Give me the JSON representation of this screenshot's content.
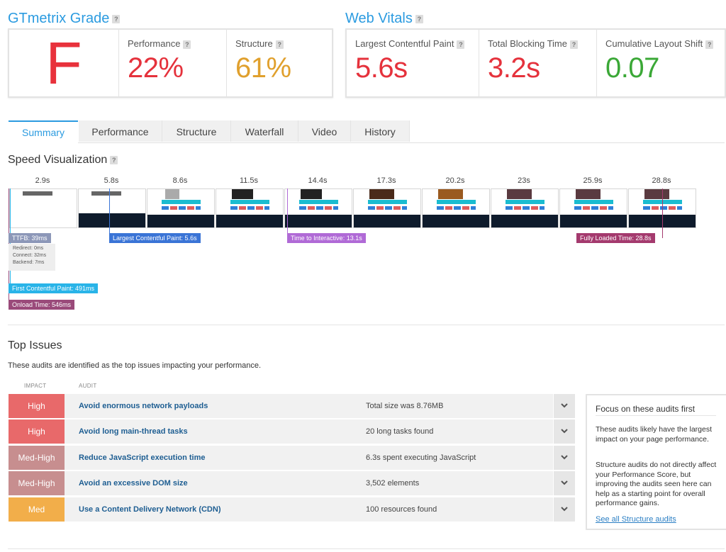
{
  "grade": {
    "title": "GTmetrix Grade",
    "letter": "F",
    "letter_color": "#e8323c",
    "performance": {
      "label": "Performance",
      "value": "22%",
      "color": "#e5323c"
    },
    "structure": {
      "label": "Structure",
      "value": "61%",
      "color": "#e0a02d"
    }
  },
  "vitals": {
    "title": "Web Vitals",
    "lcp": {
      "label": "Largest Contentful Paint",
      "value": "5.6s",
      "color": "#e5323c"
    },
    "tbt": {
      "label": "Total Blocking Time",
      "value": "3.2s",
      "color": "#e5323c"
    },
    "cls": {
      "label": "Cumulative Layout Shift",
      "value": "0.07",
      "color": "#3ba837"
    }
  },
  "help_glyph": "?",
  "tabs": [
    "Summary",
    "Performance",
    "Structure",
    "Waterfall",
    "Video",
    "History"
  ],
  "speed": {
    "title": "Speed Visualization",
    "times": [
      "2.9s",
      "5.8s",
      "8.6s",
      "11.5s",
      "14.4s",
      "17.3s",
      "20.2s",
      "23s",
      "25.9s",
      "28.8s"
    ],
    "markers": {
      "ttfb": "TTFB: 39ms",
      "ttfb_details": [
        "Redirect: 0ms",
        "Connect: 32ms",
        "Backend: 7ms"
      ],
      "lcp": "Largest Contentful Paint: 5.6s",
      "tti": "Time to Interactive: 13.1s",
      "fully_loaded": "Fully Loaded Time: 28.8s",
      "fcp": "First Contentful Paint: 491ms",
      "onload": "Onload Time: 546ms"
    }
  },
  "issues": {
    "title": "Top Issues",
    "subtitle": "These audits are identified as the top issues impacting your performance.",
    "col_impact": "IMPACT",
    "col_audit": "AUDIT",
    "rows": [
      {
        "impact": "High",
        "color": "#e8696a",
        "name": "Avoid enormous network payloads",
        "value": "Total size was 8.76MB"
      },
      {
        "impact": "High",
        "color": "#e8696a",
        "name": "Avoid long main-thread tasks",
        "value": "20 long tasks found"
      },
      {
        "impact": "Med-High",
        "color": "#c78e8f",
        "name": "Reduce JavaScript execution time",
        "value": "6.3s spent executing JavaScript"
      },
      {
        "impact": "Med-High",
        "color": "#c78e8f",
        "name": "Avoid an excessive DOM size",
        "value": "3,502 elements"
      },
      {
        "impact": "Med",
        "color": "#f2ae4a",
        "name": "Use a Content Delivery Network (CDN)",
        "value": "100 resources found"
      }
    ]
  },
  "focus": {
    "title": "Focus on these audits first",
    "p1": "These audits likely have the largest impact on your page performance.",
    "p2": "Structure audits do not directly affect your Performance Score, but improving the audits seen here can help as a starting point for overall performance gains.",
    "link": "See all Structure audits"
  }
}
